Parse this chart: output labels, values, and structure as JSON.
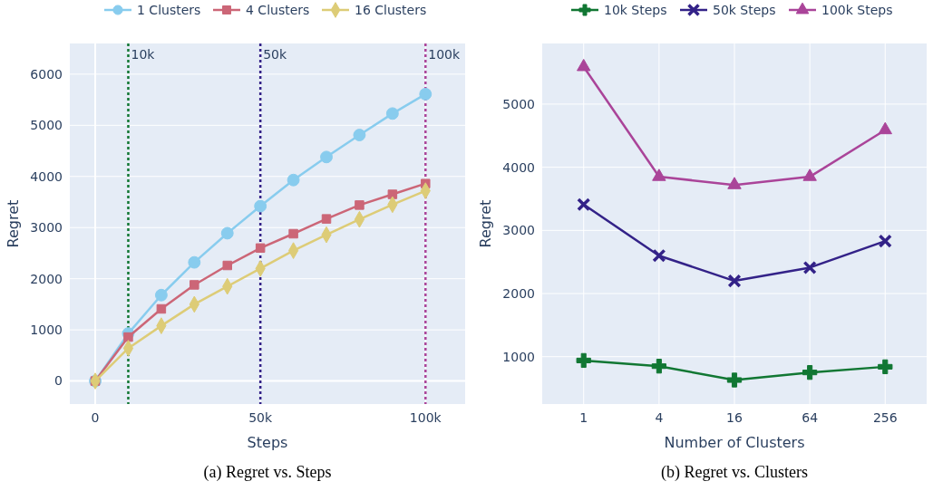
{
  "chart_data": [
    {
      "type": "line",
      "title": "(a) Regret vs. Steps",
      "xlabel": "Steps",
      "ylabel": "Regret",
      "x": [
        0,
        10000,
        20000,
        30000,
        40000,
        50000,
        60000,
        70000,
        80000,
        90000,
        100000
      ],
      "series": [
        {
          "name": "1 Clusters",
          "color": "#88ccee",
          "marker": "circle",
          "values": [
            0,
            930,
            1680,
            2320,
            2890,
            3420,
            3930,
            4380,
            4810,
            5230,
            5610
          ]
        },
        {
          "name": "4 Clusters",
          "color": "#cc6677",
          "marker": "square",
          "values": [
            0,
            860,
            1410,
            1880,
            2260,
            2600,
            2880,
            3170,
            3440,
            3650,
            3860
          ]
        },
        {
          "name": "16 Clusters",
          "color": "#ddcc77",
          "marker": "diamond",
          "values": [
            0,
            640,
            1080,
            1500,
            1850,
            2200,
            2550,
            2860,
            3160,
            3450,
            3720
          ]
        }
      ],
      "xlim": [
        -7700,
        112000
      ],
      "xticks": [
        0,
        {
          "value": 50000,
          "label": "50k"
        },
        {
          "value": 100000,
          "label": "100k"
        }
      ],
      "ylim": [
        -450,
        6600
      ],
      "yticks": [
        0,
        1000,
        2000,
        3000,
        4000,
        5000,
        6000
      ],
      "ref_lines": [
        {
          "axis": "x",
          "value": 10000,
          "label": "10k",
          "color": "#117733",
          "line_style": "dotted"
        },
        {
          "axis": "x",
          "value": 50000,
          "label": "50k",
          "color": "#332288",
          "line_style": "dotted"
        },
        {
          "axis": "x",
          "value": 100000,
          "label": "100k",
          "color": "#aa4499",
          "line_style": "dotted"
        }
      ],
      "grid": true,
      "legend": "top"
    },
    {
      "type": "line",
      "title": "(b) Regret vs. Clusters",
      "xlabel": "Number of Clusters",
      "ylabel": "Regret",
      "categories": [
        "1",
        "4",
        "16",
        "64",
        "256"
      ],
      "series": [
        {
          "name": "10k Steps",
          "color": "#117733",
          "marker": "cross",
          "values": [
            940,
            850,
            630,
            750,
            840
          ]
        },
        {
          "name": "50k Steps",
          "color": "#332288",
          "marker": "x",
          "values": [
            3410,
            2600,
            2200,
            2410,
            2830
          ]
        },
        {
          "name": "100k Steps",
          "color": "#aa4499",
          "marker": "triangle",
          "values": [
            5590,
            3850,
            3720,
            3850,
            4590
          ]
        }
      ],
      "ylim": [
        250,
        5960
      ],
      "yticks": [
        1000,
        2000,
        3000,
        4000,
        5000
      ],
      "grid": true,
      "legend": "top"
    }
  ]
}
